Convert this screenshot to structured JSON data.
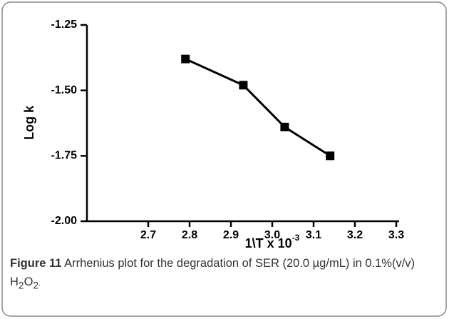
{
  "chart_data": {
    "type": "line",
    "ylabel": "Log k",
    "xlabel": "1\\T x 10",
    "xlabel_sup": "-3",
    "series": [
      {
        "name": "Log k",
        "color": "#000000",
        "x": [
          2.79,
          2.93,
          3.03,
          3.14
        ],
        "values": [
          -1.38,
          -1.48,
          -1.64,
          -1.75
        ]
      }
    ],
    "xlim": [
      2.55,
      3.3
    ],
    "xticks": [
      2.7,
      2.8,
      2.9,
      {
        "value": 3,
        "label": "3.0"
      },
      3.1,
      3.2,
      3.3
    ],
    "ylim": [
      -2,
      -1.25
    ],
    "yticks": [
      {
        "value": -2,
        "label": "-2.00"
      },
      -1.75,
      {
        "value": -1.5,
        "label": "-1.50"
      },
      -1.25
    ]
  },
  "caption": {
    "label": "Figure 11",
    "text": "Arrhenius plot for the degradation of SER (20.0 µg/mL) in 0.1%(v/v) H",
    "sub1": "2",
    "text2": "O",
    "sub2": "2",
    "end": "."
  }
}
